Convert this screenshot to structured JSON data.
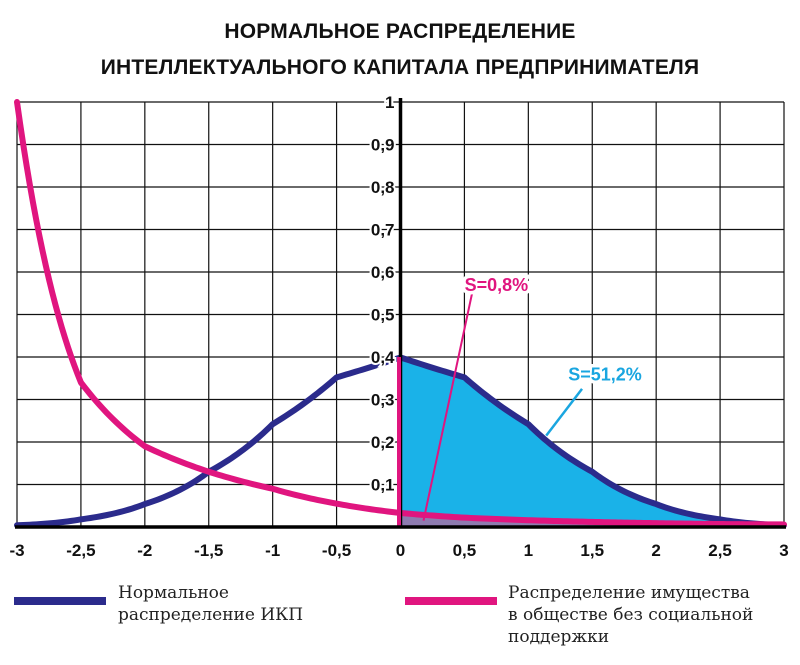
{
  "title": {
    "line1": "НОРМАЛЬНОЕ РАСПРЕДЕЛЕНИЕ",
    "line2": "ИНТЕЛЛЕКТУАЛЬНОГО КАПИТАЛА ПРЕДПРИНИМАТЕЛЯ"
  },
  "legend": {
    "blue_line1": "Нормальное",
    "blue_line2": "распределение ИКП",
    "pink_line1": "Распределение имущества",
    "pink_line2": "в обществе без социальной",
    "pink_line3": "поддержки"
  },
  "chart_data": {
    "type": "line",
    "xlim": [
      -3,
      3
    ],
    "ylim": [
      0,
      1
    ],
    "x_ticks": [
      "-3",
      "-2,5",
      "-2",
      "-1,5",
      "-1",
      "-0,5",
      "0",
      "0,5",
      "1",
      "1,5",
      "2",
      "2,5",
      "3"
    ],
    "y_ticks": [
      "0,1",
      "0,2",
      "0,3",
      "0,4",
      "0,5",
      "0,6",
      "0,7",
      "0,8",
      "0,9",
      "1"
    ],
    "grid": true,
    "series": [
      {
        "color": "#2b2b8c",
        "x": [
          -3,
          -2.5,
          -2,
          -1.5,
          -1,
          -0.5,
          0,
          0.5,
          1,
          1.5,
          2,
          2.5,
          3
        ],
        "y": [
          0.004,
          0.018,
          0.054,
          0.13,
          0.242,
          0.352,
          0.399,
          0.352,
          0.242,
          0.13,
          0.054,
          0.018,
          0.004
        ]
      },
      {
        "color": "#e0157f",
        "x": [
          -3,
          -2.5,
          -2,
          -1.5,
          -1,
          -0.5,
          0,
          0.5,
          1,
          1.5,
          2,
          2.5,
          3
        ],
        "y": [
          1.0,
          0.34,
          0.19,
          0.13,
          0.09,
          0.055,
          0.033,
          0.022,
          0.016,
          0.012,
          0.009,
          0.007,
          0.006
        ]
      }
    ],
    "shaded_areas": [
      {
        "label": "S=51,2%",
        "color": "#1ab2e8",
        "from": 0,
        "to": 3
      },
      {
        "label": "S=0,8%",
        "color": "#8e7bb0",
        "from": 0,
        "to": 3
      }
    ],
    "annotations": [
      {
        "text": "S=0,8%",
        "color": "#e0157f",
        "x": 0.75,
        "y": 0.555
      },
      {
        "text": "S=51,2%",
        "color": "#1aa6e0",
        "x": 1.6,
        "y": 0.345
      }
    ]
  }
}
